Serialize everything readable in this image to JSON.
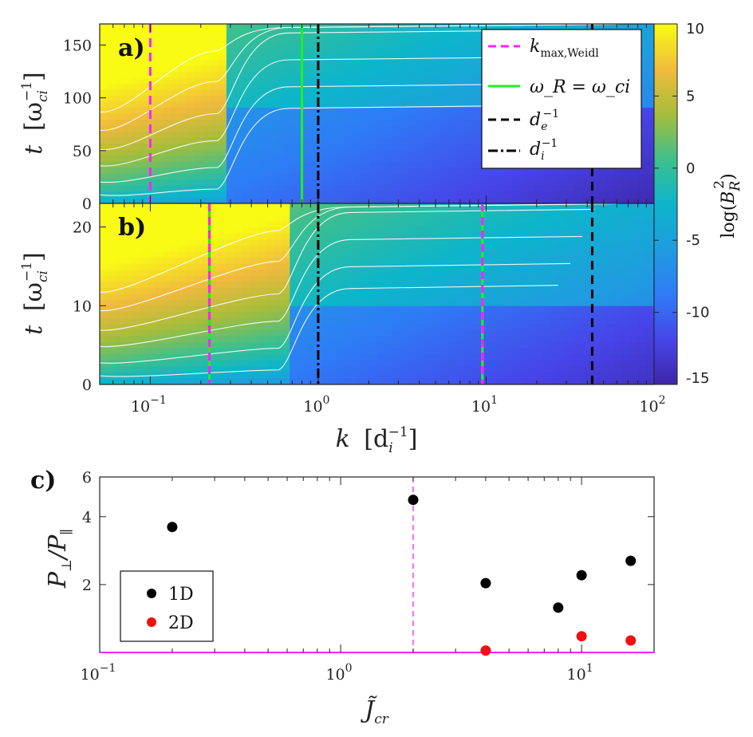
{
  "chart_data": [
    {
      "id": "a",
      "panel_label": "a)",
      "type": "heatmap",
      "title": "",
      "xscale": "log",
      "xlim": [
        0.05,
        100
      ],
      "ylim": [
        0,
        170
      ],
      "xlabel": "",
      "ylabel": "t [ω_ci^-1]",
      "ylabel_main": "t",
      "ylabel_unit": "[ω",
      "ylabel_sub": "ci",
      "ylabel_sup": "−1",
      "ylabel_close": "]",
      "yticks": [
        0,
        50,
        100,
        150
      ],
      "ytick_labels": [
        "0",
        "50",
        "100",
        "150"
      ],
      "vlines": [
        {
          "name": "k_max,Weidl",
          "x": 0.1,
          "color": "#ff22ff",
          "style": "dashed"
        },
        {
          "name": "omega_R = omega_ci",
          "x": 0.8,
          "color": "#22ee22",
          "style": "solid"
        },
        {
          "name": "d_i^-1",
          "x": 1.0,
          "color": "#000000",
          "style": "dashdot"
        },
        {
          "name": "d_e^-1",
          "x": 42.8,
          "color": "#000000",
          "style": "dashed"
        }
      ],
      "legend": {
        "position": "top-right",
        "entries": [
          {
            "label": "k",
            "sub": "max,Weidl",
            "sup": "",
            "color": "#ff22ff",
            "style": "dashed"
          },
          {
            "label": "ω_R = ω_ci",
            "sub": "",
            "sup": "",
            "color": "#22ee22",
            "style": "solid"
          },
          {
            "label": "d",
            "sub": "e",
            "sup": "−1",
            "color": "#000000",
            "style": "dashed"
          },
          {
            "label": "d",
            "sub": "i",
            "sup": "−1",
            "color": "#000000",
            "style": "dashdot"
          }
        ]
      },
      "contour_levels": [
        -5,
        0,
        5
      ],
      "transition_t": 90,
      "transition_k": 0.28
    },
    {
      "id": "b",
      "panel_label": "b)",
      "type": "heatmap",
      "title": "",
      "xscale": "log",
      "xlim": [
        0.05,
        100
      ],
      "ylim": [
        0,
        23
      ],
      "xlabel": "k [d_i^-1]",
      "xlabel_main": "k",
      "xlabel_unit": "[d",
      "xlabel_sub": "i",
      "xlabel_sup": "−1",
      "xlabel_close": "]",
      "xticks": [
        0.1,
        1,
        10,
        100
      ],
      "xtick_base": "10",
      "xtick_exps": [
        "−1",
        "0",
        "1",
        "2"
      ],
      "ylabel": "t [ω_ci^-1]",
      "ylabel_main": "t",
      "ylabel_unit": "[ω",
      "ylabel_sub": "ci",
      "ylabel_sup": "−1",
      "ylabel_close": "]",
      "yticks": [
        0,
        10,
        20
      ],
      "ytick_labels": [
        "0",
        "10",
        "20"
      ],
      "vlines": [
        {
          "name": "k_max,Weidl / omega_R",
          "x": 0.225,
          "color": "#ff22ff",
          "color2": "#22ee22",
          "style": "dashed-dual"
        },
        {
          "name": "d_i^-1",
          "x": 1.0,
          "color": "#000000",
          "style": "dashdot"
        },
        {
          "name": "k_max,Weidl / omega_R",
          "x": 9.5,
          "color": "#ff22ff",
          "color2": "#22ee22",
          "style": "dashed-dual"
        },
        {
          "name": "d_e^-1",
          "x": 42.8,
          "color": "#000000",
          "style": "dashed"
        }
      ],
      "contour_levels": [
        -5,
        0,
        5
      ],
      "transition_t": 10,
      "transition_k": 0.65
    },
    {
      "id": "colorbar",
      "type": "colorbar",
      "label": "log(B_R^2)",
      "label_main": "log(",
      "label_var": "B",
      "label_sub": "R",
      "label_sup": "2",
      "label_close": ")",
      "range": [
        -15,
        10
      ],
      "ticks": [
        -15,
        -10,
        -5,
        0,
        5,
        10
      ],
      "tick_labels": [
        "-15",
        "-10",
        "-5",
        "0",
        "5",
        "10"
      ],
      "colormap": "parula"
    },
    {
      "id": "c",
      "panel_label": "c)",
      "type": "scatter",
      "title": "",
      "xscale": "log",
      "yscale": "log",
      "xlim": [
        0.1,
        20
      ],
      "ylim": [
        1.0,
        6
      ],
      "xlabel": "J̃_cr",
      "xlabel_main": "J̃",
      "xlabel_sub": "cr",
      "ylabel": "P_⊥/P_∥",
      "ylabel_main": "P",
      "ylabel_sub1": "⊥",
      "ylabel_slash": "/P",
      "ylabel_sub2": "∥",
      "xticks": [
        0.1,
        1,
        10
      ],
      "xtick_base": "10",
      "xtick_exps": [
        "−1",
        "0",
        "1"
      ],
      "yticks": [
        2,
        4,
        6
      ],
      "ytick_labels": [
        "2",
        "4",
        "6"
      ],
      "vline": {
        "x": 2.0,
        "color": "#ff22ff",
        "style": "dashed"
      },
      "hline": {
        "y": 1.0,
        "color": "#ff22ff",
        "style": "solid"
      },
      "series": [
        {
          "name": "1D",
          "color": "#000000",
          "points": [
            [
              0.2,
              3.6
            ],
            [
              2.0,
              4.75
            ],
            [
              4.0,
              2.03
            ],
            [
              8.0,
              1.58
            ],
            [
              10.0,
              2.2
            ],
            [
              16.0,
              2.55
            ]
          ]
        },
        {
          "name": "2D",
          "color": "#ee1111",
          "points": [
            [
              4.0,
              1.02
            ],
            [
              10.0,
              1.18
            ],
            [
              16.0,
              1.13
            ]
          ]
        }
      ],
      "legend": {
        "position": "bottom-left"
      }
    }
  ]
}
